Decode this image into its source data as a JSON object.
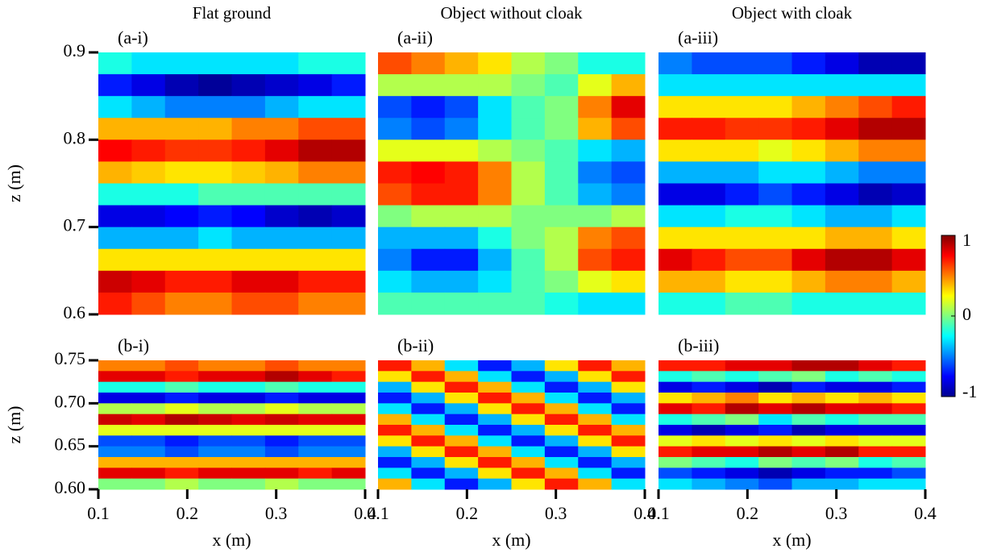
{
  "chart_data": [
    {
      "type": "heatmap",
      "title": "Flat ground",
      "label": "(a-i)",
      "ylabel": "z (m)",
      "xlim": [
        0.1,
        0.4
      ],
      "ylim": [
        0.6,
        0.9
      ],
      "yticks": [
        0.6,
        0.7,
        0.8,
        0.9
      ],
      "colormap": "jet",
      "clim": [
        -1,
        1
      ],
      "values": [
        [
          -0.2,
          -0.3,
          -0.3,
          -0.3,
          -0.3,
          -0.3,
          -0.2,
          -0.2
        ],
        [
          -0.7,
          -0.8,
          -0.9,
          -0.95,
          -0.9,
          -0.85,
          -0.8,
          -0.7
        ],
        [
          -0.3,
          -0.4,
          -0.5,
          -0.5,
          -0.5,
          -0.4,
          -0.3,
          -0.3
        ],
        [
          0.4,
          0.4,
          0.4,
          0.4,
          0.5,
          0.5,
          0.6,
          0.6
        ],
        [
          0.75,
          0.7,
          0.65,
          0.65,
          0.7,
          0.8,
          0.9,
          0.9
        ],
        [
          0.4,
          0.35,
          0.3,
          0.3,
          0.35,
          0.4,
          0.5,
          0.5
        ],
        [
          -0.2,
          -0.2,
          -0.2,
          -0.1,
          -0.1,
          -0.1,
          -0.1,
          -0.1
        ],
        [
          -0.8,
          -0.8,
          -0.75,
          -0.7,
          -0.75,
          -0.85,
          -0.9,
          -0.85
        ],
        [
          -0.4,
          -0.4,
          -0.4,
          -0.3,
          -0.4,
          -0.4,
          -0.4,
          -0.4
        ],
        [
          0.3,
          0.3,
          0.3,
          0.3,
          0.3,
          0.3,
          0.3,
          0.3
        ],
        [
          0.85,
          0.8,
          0.7,
          0.7,
          0.8,
          0.8,
          0.7,
          0.7
        ],
        [
          0.7,
          0.6,
          0.5,
          0.5,
          0.6,
          0.6,
          0.5,
          0.5
        ]
      ]
    },
    {
      "type": "heatmap",
      "title": "Object without cloak",
      "label": "(a-ii)",
      "xlim": [
        0.1,
        0.4
      ],
      "ylim": [
        0.6,
        0.9
      ],
      "colormap": "jet",
      "clim": [
        -1,
        1
      ],
      "values": [
        [
          0.6,
          0.5,
          0.4,
          0.3,
          0.1,
          0,
          -0.2,
          -0.2
        ],
        [
          0.1,
          0.1,
          0.1,
          0.1,
          0,
          -0.1,
          0.2,
          0.4
        ],
        [
          -0.6,
          -0.7,
          -0.6,
          -0.3,
          -0.1,
          0,
          0.5,
          0.8
        ],
        [
          -0.5,
          -0.6,
          -0.5,
          -0.3,
          -0.1,
          0,
          0.4,
          0.6
        ],
        [
          0.2,
          0.2,
          0.2,
          0.1,
          0,
          -0.1,
          -0.3,
          -0.4
        ],
        [
          0.7,
          0.75,
          0.7,
          0.5,
          0.1,
          -0.1,
          -0.5,
          -0.6
        ],
        [
          0.6,
          0.7,
          0.7,
          0.5,
          0.1,
          -0.1,
          -0.4,
          -0.5
        ],
        [
          0,
          0.1,
          0.1,
          0.1,
          0,
          0,
          0,
          0.1
        ],
        [
          -0.4,
          -0.4,
          -0.4,
          -0.2,
          0,
          0.1,
          0.5,
          0.6
        ],
        [
          -0.5,
          -0.7,
          -0.7,
          -0.4,
          -0.1,
          0.1,
          0.6,
          0.7
        ],
        [
          -0.3,
          -0.4,
          -0.4,
          -0.3,
          -0.1,
          0,
          0.2,
          0.3
        ],
        [
          -0.1,
          -0.1,
          -0.1,
          -0.1,
          -0.1,
          -0.2,
          -0.3,
          -0.3
        ]
      ]
    },
    {
      "type": "heatmap",
      "title": "Object with cloak",
      "label": "(a-iii)",
      "xlim": [
        0.1,
        0.4
      ],
      "ylim": [
        0.6,
        0.9
      ],
      "colormap": "jet",
      "clim": [
        -1,
        1
      ],
      "values": [
        [
          -0.5,
          -0.6,
          -0.6,
          -0.6,
          -0.7,
          -0.8,
          -0.9,
          -0.9
        ],
        [
          -0.3,
          -0.3,
          -0.3,
          -0.3,
          -0.3,
          -0.3,
          -0.3,
          -0.3
        ],
        [
          0.3,
          0.3,
          0.3,
          0.3,
          0.4,
          0.5,
          0.6,
          0.7
        ],
        [
          0.7,
          0.7,
          0.65,
          0.65,
          0.7,
          0.8,
          0.9,
          0.9
        ],
        [
          0.3,
          0.3,
          0.3,
          0.2,
          0.3,
          0.4,
          0.5,
          0.5
        ],
        [
          -0.4,
          -0.4,
          -0.4,
          -0.3,
          -0.3,
          -0.4,
          -0.5,
          -0.5
        ],
        [
          -0.8,
          -0.8,
          -0.7,
          -0.6,
          -0.7,
          -0.8,
          -0.9,
          -0.85
        ],
        [
          -0.3,
          -0.3,
          -0.2,
          -0.2,
          -0.3,
          -0.4,
          -0.4,
          -0.3
        ],
        [
          0.3,
          0.3,
          0.3,
          0.3,
          0.3,
          0.4,
          0.4,
          0.3
        ],
        [
          0.8,
          0.7,
          0.6,
          0.6,
          0.8,
          0.9,
          0.9,
          0.8
        ],
        [
          0.4,
          0.4,
          0.3,
          0.3,
          0.4,
          0.5,
          0.5,
          0.4
        ],
        [
          -0.2,
          -0.2,
          -0.1,
          -0.1,
          -0.2,
          -0.2,
          -0.2,
          -0.2
        ]
      ]
    },
    {
      "type": "heatmap",
      "label": "(b-i)",
      "xlabel": "x (m)",
      "ylabel": "z (m)",
      "xlim": [
        0.1,
        0.4
      ],
      "ylim": [
        0.6,
        0.75
      ],
      "xticks": [
        0.1,
        0.2,
        0.3,
        0.4
      ],
      "yticks": [
        {
          "value": 0.6,
          "label": "0.60"
        },
        0.65,
        {
          "value": 0.7,
          "label": "0.70"
        },
        0.75
      ],
      "colormap": "jet",
      "clim": [
        -1,
        1
      ],
      "values": [
        [
          0.5,
          0.5,
          0.6,
          0.5,
          0.5,
          0.6,
          0.5,
          0.5
        ],
        [
          0.8,
          0.8,
          0.7,
          0.8,
          0.8,
          0.9,
          0.8,
          0.7
        ],
        [
          -0.2,
          -0.2,
          -0.1,
          -0.2,
          -0.2,
          -0.1,
          -0.2,
          -0.2
        ],
        [
          -0.8,
          -0.8,
          -0.7,
          -0.8,
          -0.8,
          -0.7,
          -0.8,
          -0.8
        ],
        [
          0.1,
          0.1,
          0.2,
          0.1,
          0.1,
          0.2,
          0.1,
          0.1
        ],
        [
          0.85,
          0.8,
          0.9,
          0.85,
          0.8,
          0.85,
          0.8,
          0.8
        ],
        [
          0.2,
          0.2,
          0.2,
          0.2,
          0.2,
          0.2,
          0.2,
          0.2
        ],
        [
          -0.6,
          -0.6,
          -0.7,
          -0.6,
          -0.6,
          -0.7,
          -0.6,
          -0.6
        ],
        [
          -0.5,
          -0.5,
          -0.6,
          -0.5,
          -0.5,
          -0.6,
          -0.5,
          -0.5
        ],
        [
          0.4,
          0.4,
          0.4,
          0.4,
          0.4,
          0.4,
          0.4,
          0.4
        ],
        [
          0.8,
          0.8,
          0.7,
          0.8,
          0.8,
          0.8,
          0.7,
          0.8
        ],
        [
          0,
          0,
          0.1,
          0,
          0,
          0.1,
          0,
          0
        ]
      ]
    },
    {
      "type": "heatmap",
      "label": "(b-ii)",
      "xlabel": "x (m)",
      "xlim": [
        0.1,
        0.4
      ],
      "ylim": [
        0.6,
        0.75
      ],
      "xticks": [
        0.1,
        0.2,
        0.3,
        0.4
      ],
      "colormap": "jet",
      "clim": [
        -1,
        1
      ],
      "values": [
        [
          0.7,
          0.4,
          -0.3,
          -0.7,
          -0.4,
          0.3,
          0.7,
          0.4
        ],
        [
          0.3,
          0.7,
          0.4,
          -0.3,
          -0.7,
          -0.4,
          0.3,
          0.7
        ],
        [
          -0.4,
          0.3,
          0.7,
          0.4,
          -0.3,
          -0.7,
          -0.4,
          0.3
        ],
        [
          -0.7,
          -0.4,
          0.3,
          0.7,
          0.4,
          -0.3,
          -0.7,
          -0.4
        ],
        [
          -0.3,
          -0.7,
          -0.4,
          0.3,
          0.7,
          0.4,
          -0.3,
          -0.7
        ],
        [
          0.4,
          -0.3,
          -0.7,
          -0.4,
          0.3,
          0.7,
          0.4,
          -0.3
        ],
        [
          0.7,
          0.4,
          -0.3,
          -0.7,
          -0.4,
          0.3,
          0.7,
          0.4
        ],
        [
          0.3,
          0.7,
          0.4,
          -0.3,
          -0.7,
          -0.4,
          0.3,
          0.7
        ],
        [
          -0.4,
          0.3,
          0.7,
          0.4,
          -0.3,
          -0.7,
          -0.4,
          0.3
        ],
        [
          -0.7,
          -0.4,
          0.3,
          0.7,
          0.4,
          -0.3,
          -0.7,
          -0.4
        ],
        [
          -0.3,
          -0.7,
          -0.4,
          0.3,
          0.7,
          0.4,
          -0.3,
          -0.7
        ],
        [
          0.4,
          -0.3,
          -0.7,
          -0.4,
          0.3,
          0.7,
          0.4,
          -0.3
        ]
      ]
    },
    {
      "type": "heatmap",
      "label": "(b-iii)",
      "xlabel": "x (m)",
      "xlim": [
        0.1,
        0.4
      ],
      "ylim": [
        0.6,
        0.75
      ],
      "xticks": [
        0.1,
        0.2,
        0.3,
        0.4
      ],
      "colormap": "jet",
      "clim": [
        -1,
        1
      ],
      "values": [
        [
          0.7,
          0.7,
          0.8,
          0.8,
          0.9,
          0.9,
          0.8,
          0.7
        ],
        [
          -0.2,
          -0.1,
          -0.2,
          -0.1,
          0,
          -0.2,
          -0.1,
          -0.2
        ],
        [
          -0.8,
          -0.7,
          -0.8,
          -0.9,
          -0.7,
          -0.8,
          -0.8,
          -0.7
        ],
        [
          0.3,
          0.4,
          0.5,
          0.3,
          0.4,
          0.3,
          0.4,
          0.3
        ],
        [
          0.8,
          0.7,
          0.9,
          0.8,
          0.9,
          0.8,
          0.8,
          0.7
        ],
        [
          -0.2,
          -0.1,
          0,
          -0.3,
          -0.1,
          -0.2,
          -0.1,
          -0.1
        ],
        [
          -0.8,
          -0.9,
          -0.8,
          -0.7,
          -0.9,
          -0.8,
          -0.8,
          -0.8
        ],
        [
          0.2,
          0.3,
          0.2,
          0.3,
          0.2,
          0.3,
          0.2,
          0.2
        ],
        [
          0.7,
          0.8,
          0.8,
          0.9,
          0.8,
          0.9,
          0.7,
          0.7
        ],
        [
          0,
          -0.1,
          -0.2,
          0,
          -0.1,
          0,
          -0.2,
          -0.1
        ],
        [
          -0.6,
          -0.7,
          -0.8,
          -0.9,
          -0.8,
          -0.7,
          -0.7,
          -0.6
        ],
        [
          -0.3,
          -0.4,
          -0.5,
          -0.6,
          -0.4,
          -0.4,
          -0.3,
          -0.3
        ]
      ]
    }
  ],
  "colorbar": {
    "clim": [
      -1,
      1
    ],
    "ticks": [
      1,
      0,
      -1
    ]
  }
}
